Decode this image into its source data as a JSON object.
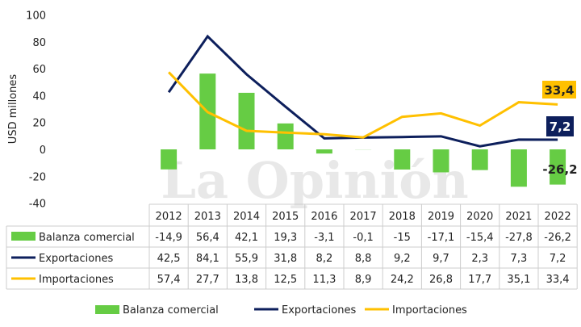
{
  "watermark": "La Opinión",
  "chart_data": {
    "type": "bar+line",
    "ylabel": "USD millones",
    "ylim": [
      -40,
      100
    ],
    "yticks": [
      -40,
      -20,
      0,
      20,
      40,
      60,
      80,
      100
    ],
    "categories": [
      "2012",
      "2013",
      "2014",
      "2015",
      "2016",
      "2017",
      "2018",
      "2019",
      "2020",
      "2021",
      "2022"
    ],
    "series": [
      {
        "name": "Balanza comercial",
        "type": "bar",
        "color": "#66cc44",
        "values": [
          -14.9,
          56.4,
          42.1,
          19.3,
          -3.1,
          -0.1,
          -15,
          -17.1,
          -15.4,
          -27.8,
          -26.2
        ],
        "labels": [
          "-14,9",
          "56,4",
          "42,1",
          "19,3",
          "-3,1",
          "-0,1",
          "-15",
          "-17,1",
          "-15,4",
          "-27,8",
          "-26,2"
        ]
      },
      {
        "name": "Exportaciones",
        "type": "line",
        "color": "#0d1f5c",
        "values": [
          42.5,
          84.1,
          55.9,
          31.8,
          8.2,
          8.8,
          9.2,
          9.7,
          2.3,
          7.3,
          7.2
        ],
        "labels": [
          "42,5",
          "84,1",
          "55,9",
          "31,8",
          "8,2",
          "8,8",
          "9,2",
          "9,7",
          "2,3",
          "7,3",
          "7,2"
        ]
      },
      {
        "name": "Importaciones",
        "type": "line",
        "color": "#ffc000",
        "values": [
          57.4,
          27.7,
          13.8,
          12.5,
          11.3,
          8.9,
          24.2,
          26.8,
          17.7,
          35.1,
          33.4
        ],
        "labels": [
          "57,4",
          "27,7",
          "13,8",
          "12,5",
          "11,3",
          "8,9",
          "24,2",
          "26,8",
          "17,7",
          "35,1",
          "33,4"
        ]
      }
    ],
    "annotations": [
      "33,4",
      "7,2",
      "-26,2"
    ],
    "legend": "bottom"
  }
}
